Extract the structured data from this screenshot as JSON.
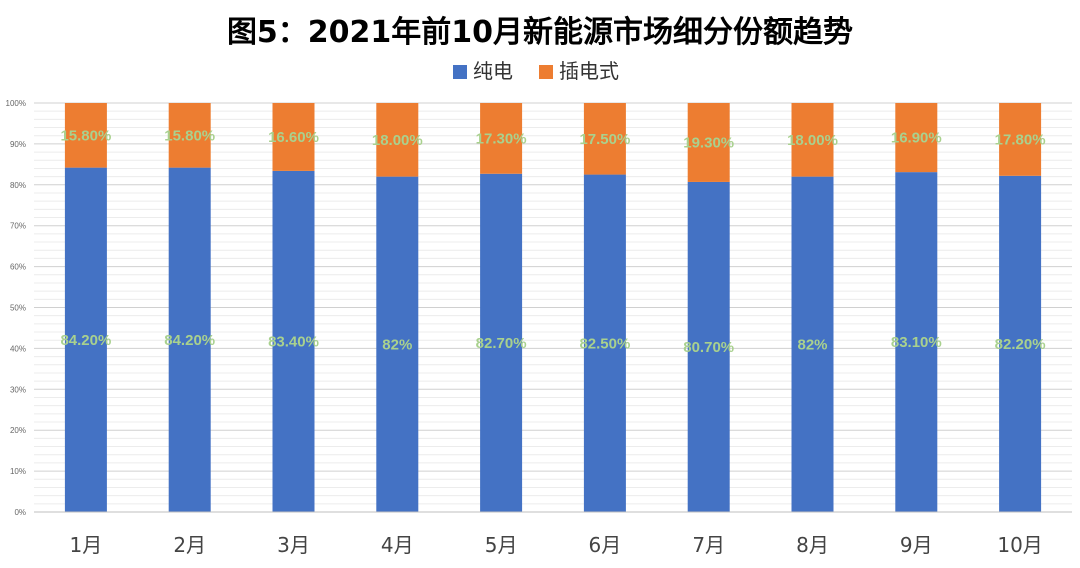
{
  "chart_data": {
    "type": "bar",
    "stacked": true,
    "percent_stacked": true,
    "title": "图5：2021年前10月新能源市场细分份额趋势",
    "xlabel": "",
    "ylabel": "",
    "categories": [
      "1月",
      "2月",
      "3月",
      "4月",
      "5月",
      "6月",
      "7月",
      "8月",
      "9月",
      "10月"
    ],
    "series": [
      {
        "name": "纯电",
        "color": "#4472C4",
        "values": [
          84.2,
          84.2,
          83.4,
          82,
          82.7,
          82.5,
          80.7,
          82,
          83.1,
          82.2
        ],
        "labels": [
          "84.20%",
          "84.20%",
          "83.40%",
          "82%",
          "82.70%",
          "82.50%",
          "80.70%",
          "82%",
          "83.10%",
          "82.20%"
        ]
      },
      {
        "name": "插电式",
        "color": "#ED7D31",
        "values": [
          15.8,
          15.8,
          16.6,
          18.0,
          17.3,
          17.5,
          19.3,
          18.0,
          16.9,
          17.8
        ],
        "labels": [
          "15.80%",
          "15.80%",
          "16.60%",
          "18.00%",
          "17.30%",
          "17.50%",
          "19.30%",
          "18.00%",
          "16.90%",
          "17.80%"
        ]
      }
    ],
    "ylim": [
      0,
      100
    ],
    "yticks": [
      "0%",
      "10%",
      "20%",
      "30%",
      "40%",
      "50%",
      "60%",
      "70%",
      "80%",
      "90%",
      "100%"
    ],
    "grid": true,
    "legend": "top-center",
    "label_color": "#A9D18E"
  }
}
